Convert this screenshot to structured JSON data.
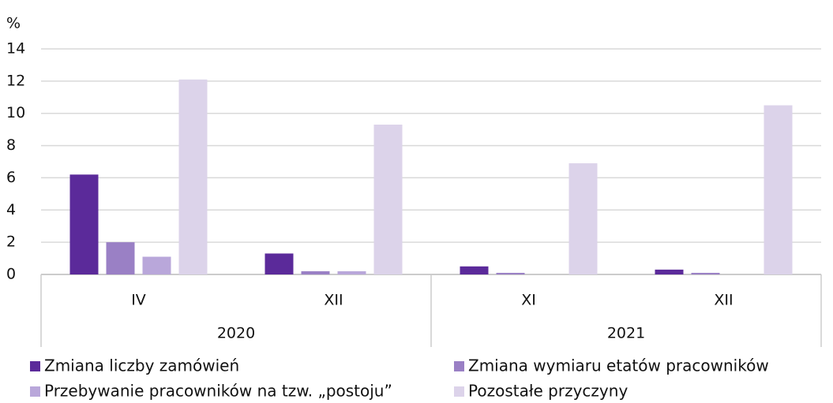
{
  "chart_data": {
    "type": "bar",
    "y_unit": "%",
    "categories": [
      "IV",
      "XII",
      "XI",
      "XII"
    ],
    "x_groups": [
      "2020",
      "2020",
      "2021",
      "2021"
    ],
    "series": [
      {
        "name": "Zmiana liczby zamówień",
        "color": "#5b2a9a",
        "values": [
          6.2,
          1.3,
          0.5,
          0.3
        ]
      },
      {
        "name": "Zmiana wymiaru etatów pracowników",
        "color": "#9a80c5",
        "values": [
          2.0,
          0.2,
          0.1,
          0.1
        ]
      },
      {
        "name": "Przebywanie pracowników na tzw. „postoju”",
        "color": "#b9a7da",
        "values": [
          1.1,
          0.2,
          0.0,
          0.0
        ]
      },
      {
        "name": "Pozostałe przyczyny",
        "color": "#dcd3ea",
        "values": [
          12.1,
          9.3,
          6.9,
          10.5
        ]
      }
    ],
    "ylim": [
      0,
      14
    ],
    "yticks": [
      0,
      2,
      4,
      6,
      8,
      10,
      12,
      14
    ],
    "grid": true
  }
}
